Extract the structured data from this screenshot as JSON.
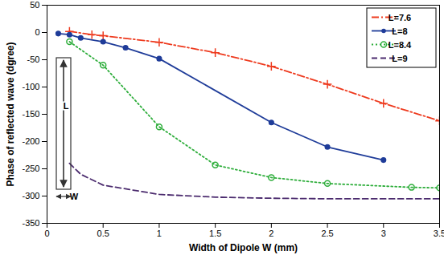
{
  "chart_data": {
    "type": "line",
    "xlabel": "Width of Dipole W (mm)",
    "ylabel": "Phase of reflected wave (dgree)",
    "xlim": [
      0,
      3.5
    ],
    "xticks": [
      0,
      0.5,
      1,
      1.5,
      2,
      2.5,
      3,
      3.5
    ],
    "ylim": [
      -350,
      50
    ],
    "yticks": [
      -350,
      -300,
      -250,
      -200,
      -150,
      -100,
      -50,
      0,
      50
    ],
    "grid": false,
    "legend": "upper right",
    "annotations": [
      "L",
      "W"
    ],
    "series": [
      {
        "name": "L=7.6",
        "color": "#ee3a1e",
        "marker": "plus",
        "line_style": "dashdot",
        "x": [
          0.2,
          0.4,
          0.5,
          1.0,
          1.5,
          2.0,
          2.5,
          3.0,
          3.5
        ],
        "values": [
          2,
          -4,
          -6,
          -18,
          -37,
          -62,
          -95,
          -130,
          -162
        ]
      },
      {
        "name": "L=8",
        "color": "#1f3c99",
        "marker": "circle",
        "line_style": "solid",
        "x": [
          0.1,
          0.2,
          0.3,
          0.5,
          0.7,
          1.0,
          2.0,
          2.5,
          3.0
        ],
        "values": [
          -2,
          -4,
          -10,
          -17,
          -28,
          -48,
          -165,
          -210,
          -234
        ]
      },
      {
        "name": "L=8.4",
        "color": "#2fae3c",
        "marker": "circle-open",
        "line_style": "dotted",
        "x": [
          0.2,
          0.5,
          1.0,
          1.5,
          2.0,
          2.5,
          3.25,
          3.5
        ],
        "values": [
          -17,
          -60,
          -173,
          -243,
          -266,
          -277,
          -284,
          -285
        ]
      },
      {
        "name": "L=9",
        "color": "#4b2b6e",
        "marker": "none",
        "line_style": "dashed",
        "x": [
          0.2,
          0.3,
          0.5,
          1.0,
          1.5,
          2.0,
          2.5,
          3.0,
          3.5
        ],
        "values": [
          -240,
          -260,
          -280,
          -297,
          -302,
          -304,
          -305,
          -305,
          -305
        ]
      }
    ]
  }
}
